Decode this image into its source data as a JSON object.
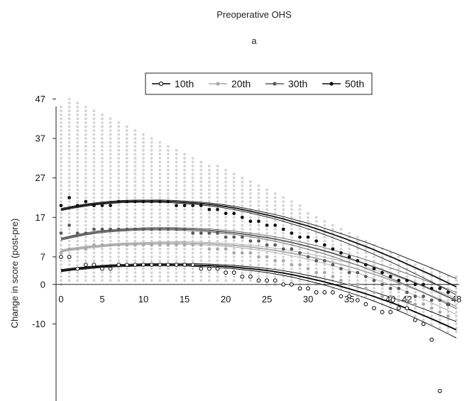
{
  "chart_data": {
    "type": "scatter",
    "title": "Preoperative OHS",
    "subtitle": "a",
    "xlabel": "",
    "ylabel": "Change in score (post-pre)",
    "x_ticks": [
      "0",
      "5",
      "10",
      "15",
      "20",
      "25",
      "30",
      "35",
      "40",
      "42",
      "48"
    ],
    "y_ticks": [
      "47",
      "37",
      "27",
      "17",
      "7",
      "0",
      "-10"
    ],
    "xlim": [
      0,
      48
    ],
    "ylim": [
      -30,
      47
    ],
    "grid": false,
    "legend_position": "top-center",
    "background_points": {
      "color": "#d4d4d4",
      "x_values": [
        0,
        1,
        2,
        3,
        4,
        5,
        6,
        7,
        8,
        9,
        10,
        11,
        12,
        13,
        14,
        15,
        16,
        17,
        18,
        19,
        20,
        21,
        22,
        23,
        24,
        25,
        26,
        27,
        28,
        29,
        30,
        31,
        32,
        33,
        34,
        35,
        36,
        37,
        38,
        39,
        40,
        41,
        42,
        43,
        44,
        45,
        46,
        47,
        48
      ],
      "max_y": [
        45,
        47,
        46,
        45,
        44,
        43,
        42,
        41,
        40,
        39,
        38,
        37,
        36,
        35,
        34,
        33,
        32,
        31,
        30,
        30,
        29,
        28,
        27,
        26,
        25,
        24,
        23,
        22,
        21,
        20,
        18,
        17,
        16,
        15,
        14,
        13,
        12,
        11,
        10,
        9,
        8,
        7,
        6,
        5,
        4,
        4,
        3,
        2,
        2
      ],
      "min_y": [
        0,
        1,
        1,
        1,
        1,
        1,
        1,
        1,
        1,
        1,
        1,
        1,
        1,
        1,
        1,
        1,
        1,
        1,
        1,
        1,
        1,
        1,
        1,
        1,
        1,
        0,
        0,
        0,
        0,
        0,
        0,
        0,
        0,
        -1,
        -1,
        -2,
        -3,
        -3,
        -4,
        -5,
        -6,
        -6,
        -7,
        -8,
        -9,
        -10,
        -11,
        -12,
        -12
      ]
    },
    "series": [
      {
        "name": "10th",
        "color": "#000000",
        "marker": "open-circle",
        "x": [
          0,
          1,
          2,
          3,
          4,
          5,
          6,
          7,
          8,
          9,
          10,
          11,
          12,
          13,
          14,
          15,
          16,
          17,
          18,
          19,
          20,
          21,
          22,
          23,
          24,
          25,
          26,
          27,
          28,
          29,
          30,
          31,
          32,
          33,
          34,
          35,
          36,
          37,
          38,
          39,
          40,
          41,
          42,
          43,
          44,
          45,
          46,
          47
        ],
        "values": [
          7,
          7,
          4,
          5,
          5,
          4,
          4,
          5,
          5,
          5,
          5,
          5,
          5,
          5,
          5,
          5,
          5,
          4,
          4,
          4,
          3,
          3,
          2,
          2,
          1,
          1,
          1,
          0,
          0,
          -1,
          -1,
          -2,
          -2,
          -2,
          -3,
          -3,
          -4,
          -5,
          -6,
          -7,
          -7,
          -6,
          -6,
          -9,
          -10,
          -14,
          -27,
          -5
        ],
        "curve": [
          3.5,
          3.9,
          4.2,
          4.5,
          4.7,
          4.8,
          4.9,
          5.0,
          5.0,
          5.0,
          5.0,
          4.9,
          4.8,
          4.6,
          4.4,
          4.1,
          3.8,
          3.4,
          2.9,
          2.3,
          1.6,
          0.9,
          0.1,
          -0.8,
          -1.7,
          -2.7,
          -3.8,
          -4.9,
          -6.1,
          -7.4,
          -8.7,
          -10.1,
          -11.5
        ]
      },
      {
        "name": "20th",
        "color": "#a8a8a8",
        "marker": "dot",
        "x": [
          0,
          1,
          2,
          3,
          4,
          5,
          6,
          7,
          8,
          9,
          10,
          11,
          12,
          13,
          14,
          15,
          16,
          17,
          18,
          19,
          20,
          21,
          22,
          23,
          24,
          25,
          26,
          27,
          28,
          29,
          30,
          31,
          32,
          33,
          34,
          35,
          36,
          37,
          38,
          39,
          40,
          41,
          42,
          43,
          44,
          45,
          46,
          47
        ],
        "values": [
          8,
          9,
          9,
          9,
          10,
          10,
          10,
          10,
          10,
          10,
          10,
          10,
          10,
          10,
          10,
          10,
          10,
          10,
          9,
          9,
          9,
          8,
          8,
          8,
          7,
          7,
          6,
          6,
          5,
          5,
          4,
          3,
          3,
          2,
          1,
          0,
          0,
          -1,
          -2,
          -3,
          -3,
          -4,
          -4,
          -5,
          -5,
          -6,
          -7,
          -8
        ],
        "curve": [
          8.5,
          9.0,
          9.4,
          9.7,
          10.0,
          10.2,
          10.3,
          10.4,
          10.5,
          10.5,
          10.5,
          10.4,
          10.3,
          10.1,
          9.9,
          9.6,
          9.2,
          8.8,
          8.3,
          7.7,
          7.1,
          6.4,
          5.6,
          4.8,
          3.9,
          2.9,
          1.9,
          0.8,
          -0.4,
          -1.6,
          -2.9,
          -4.2,
          -5.6
        ]
      },
      {
        "name": "30th",
        "color": "#5a5a5a",
        "marker": "dot",
        "x": [
          0,
          1,
          2,
          3,
          4,
          5,
          6,
          7,
          8,
          9,
          10,
          11,
          12,
          13,
          14,
          15,
          16,
          17,
          18,
          19,
          20,
          21,
          22,
          23,
          24,
          25,
          26,
          27,
          28,
          29,
          30,
          31,
          32,
          33,
          34,
          35,
          36,
          37,
          38,
          39,
          40,
          41,
          42,
          43,
          44,
          45,
          46,
          47
        ],
        "values": [
          13,
          15,
          13,
          13,
          14,
          14,
          14,
          14,
          14,
          14,
          14,
          14,
          14,
          14,
          14,
          14,
          13,
          13,
          13,
          13,
          12,
          12,
          12,
          11,
          11,
          10,
          10,
          9,
          9,
          8,
          7,
          6,
          6,
          5,
          4,
          3,
          3,
          2,
          1,
          0,
          -1,
          -1,
          -2,
          -3,
          -3,
          -4,
          -4,
          -5
        ],
        "curve": [
          11.5,
          12.2,
          12.8,
          13.3,
          13.6,
          13.8,
          14.0,
          14.1,
          14.1,
          14.1,
          14.0,
          13.9,
          13.7,
          13.4,
          13.1,
          12.7,
          12.2,
          11.7,
          11.1,
          10.4,
          9.6,
          8.8,
          7.9,
          6.9,
          5.9,
          4.8,
          3.7,
          2.5,
          1.3,
          0.0,
          -1.3,
          -2.7,
          -4.1
        ]
      },
      {
        "name": "50th",
        "color": "#111111",
        "marker": "dot",
        "x": [
          0,
          1,
          2,
          3,
          4,
          5,
          6,
          7,
          8,
          9,
          10,
          11,
          12,
          13,
          14,
          15,
          16,
          17,
          18,
          19,
          20,
          21,
          22,
          23,
          24,
          25,
          26,
          27,
          28,
          29,
          30,
          31,
          32,
          33,
          34,
          35,
          36,
          37,
          38,
          39,
          40,
          41,
          42,
          43,
          44,
          45,
          46,
          47
        ],
        "values": [
          20,
          22,
          20,
          21,
          20,
          20,
          20,
          21,
          21,
          21,
          21,
          21,
          21,
          21,
          20,
          20,
          20,
          20,
          19,
          19,
          18,
          18,
          17,
          16,
          16,
          15,
          15,
          14,
          13,
          12,
          12,
          11,
          10,
          9,
          8,
          7,
          6,
          5,
          4,
          3,
          2,
          1,
          1,
          0,
          0,
          -1,
          -1,
          -2
        ],
        "curve": [
          19.0,
          19.6,
          20.1,
          20.5,
          20.8,
          21.0,
          21.1,
          21.1,
          21.1,
          21.0,
          20.8,
          20.6,
          20.3,
          19.9,
          19.4,
          18.8,
          18.1,
          17.4,
          16.6,
          15.7,
          14.8,
          13.8,
          12.7,
          11.6,
          10.4,
          9.2,
          7.9,
          6.6,
          5.2,
          3.8,
          2.4,
          0.9,
          -0.6
        ]
      }
    ]
  }
}
